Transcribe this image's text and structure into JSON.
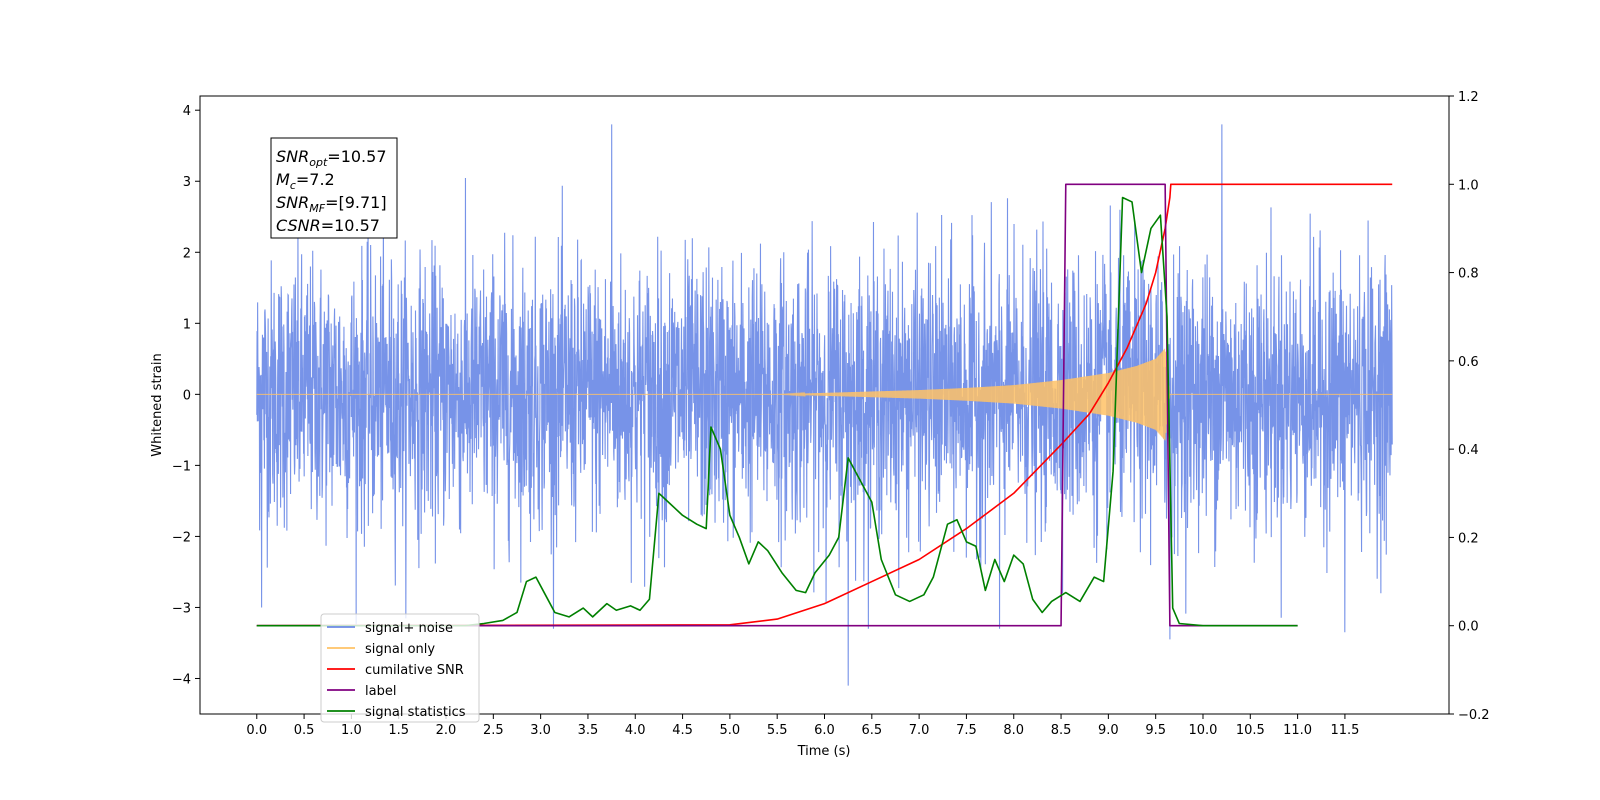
{
  "chart_data": {
    "type": "line",
    "xlabel": "Time (s)",
    "ylabel": "Whitened strain",
    "xlim": [
      -0.6,
      12.6
    ],
    "ylim_left": [
      -4.5,
      4.2
    ],
    "ylim_right": [
      -0.2,
      1.2
    ],
    "x_ticks": [
      "0.0",
      "0.5",
      "1.0",
      "1.5",
      "2.0",
      "2.5",
      "3.0",
      "3.5",
      "4.0",
      "4.5",
      "5.0",
      "5.5",
      "6.0",
      "6.5",
      "7.0",
      "7.5",
      "8.0",
      "8.5",
      "9.0",
      "9.5",
      "10.0",
      "10.5",
      "11.0",
      "11.5"
    ],
    "y_left_ticks": [
      "4",
      "3",
      "2",
      "1",
      "0",
      "−1",
      "−2",
      "−3",
      "−4"
    ],
    "y_right_ticks": [
      "1.2",
      "1.0",
      "0.8",
      "0.6",
      "0.4",
      "0.2",
      "0.0",
      "−0.2"
    ],
    "annotation": {
      "lines": [
        {
          "sym": "SNR",
          "sub": "opt",
          "value": "=10.57"
        },
        {
          "sym": "M",
          "sub": "c",
          "value": "=7.2"
        },
        {
          "sym": "SNR",
          "sub": "MF",
          "value": "=[9.71]"
        },
        {
          "sym": "CSNR",
          "sub": "",
          "value": "=10.57"
        }
      ]
    },
    "legend": {
      "placement": "lower-left",
      "entries": [
        {
          "label": "signal+ noise",
          "color": "#6b8ae6"
        },
        {
          "label": "signal only",
          "color": "#ffc266"
        },
        {
          "label": "cumilative SNR",
          "color": "#ff0000"
        },
        {
          "label": "label",
          "color": "#800080"
        },
        {
          "label": "signal statistics",
          "color": "#008000"
        }
      ]
    },
    "series": [
      {
        "name": "signal+ noise",
        "axis": "left",
        "color": "#6b8ae6",
        "x_range": [
          0.0,
          12.0
        ],
        "typical_amplitude": 1.5,
        "peak_excursions": [
          {
            "x": 3.75,
            "y": 3.8
          },
          {
            "x": 10.2,
            "y": 3.8
          },
          {
            "x": 6.25,
            "y": -4.1
          },
          {
            "x": 11.5,
            "y": -3.35
          },
          {
            "x": 9.65,
            "y": -3.45
          },
          {
            "x": 0.05,
            "y": -3.0
          },
          {
            "x": 7.85,
            "y": -3.3
          }
        ]
      },
      {
        "name": "signal only",
        "axis": "left",
        "color": "#ffc266",
        "x_range": [
          0.0,
          12.0
        ],
        "envelope": [
          [
            0.0,
            0.0
          ],
          [
            5.5,
            0.0
          ],
          [
            6.0,
            0.02
          ],
          [
            6.5,
            0.04
          ],
          [
            7.0,
            0.06
          ],
          [
            7.5,
            0.09
          ],
          [
            8.0,
            0.13
          ],
          [
            8.5,
            0.2
          ],
          [
            9.0,
            0.3
          ],
          [
            9.3,
            0.4
          ],
          [
            9.5,
            0.5
          ],
          [
            9.6,
            0.65
          ],
          [
            9.65,
            0.0
          ],
          [
            12.0,
            0.0
          ]
        ]
      },
      {
        "name": "cumilative SNR",
        "axis": "right",
        "color": "#ff0000",
        "points": [
          [
            0.0,
            0.0
          ],
          [
            5.0,
            0.002
          ],
          [
            5.5,
            0.015
          ],
          [
            6.0,
            0.05
          ],
          [
            6.5,
            0.1
          ],
          [
            7.0,
            0.15
          ],
          [
            7.5,
            0.22
          ],
          [
            8.0,
            0.3
          ],
          [
            8.5,
            0.41
          ],
          [
            8.8,
            0.48
          ],
          [
            9.0,
            0.55
          ],
          [
            9.2,
            0.63
          ],
          [
            9.4,
            0.73
          ],
          [
            9.5,
            0.8
          ],
          [
            9.6,
            0.9
          ],
          [
            9.65,
            0.97
          ],
          [
            9.66,
            1.0
          ],
          [
            12.0,
            1.0
          ]
        ]
      },
      {
        "name": "label",
        "axis": "right",
        "color": "#800080",
        "points": [
          [
            0.0,
            0.0
          ],
          [
            8.5,
            0.0
          ],
          [
            8.55,
            1.0
          ],
          [
            9.6,
            1.0
          ],
          [
            9.65,
            0.0
          ],
          [
            11.0,
            0.0
          ]
        ]
      },
      {
        "name": "signal statistics",
        "axis": "right",
        "color": "#008000",
        "points": [
          [
            0.0,
            0.0
          ],
          [
            2.2,
            0.0
          ],
          [
            2.4,
            0.005
          ],
          [
            2.6,
            0.012
          ],
          [
            2.75,
            0.03
          ],
          [
            2.85,
            0.1
          ],
          [
            2.95,
            0.11
          ],
          [
            3.05,
            0.07
          ],
          [
            3.15,
            0.03
          ],
          [
            3.3,
            0.02
          ],
          [
            3.45,
            0.04
          ],
          [
            3.55,
            0.02
          ],
          [
            3.7,
            0.05
          ],
          [
            3.8,
            0.035
          ],
          [
            3.95,
            0.045
          ],
          [
            4.05,
            0.035
          ],
          [
            4.15,
            0.06
          ],
          [
            4.25,
            0.3
          ],
          [
            4.35,
            0.28
          ],
          [
            4.5,
            0.25
          ],
          [
            4.65,
            0.23
          ],
          [
            4.75,
            0.22
          ],
          [
            4.8,
            0.45
          ],
          [
            4.9,
            0.4
          ],
          [
            5.0,
            0.25
          ],
          [
            5.1,
            0.2
          ],
          [
            5.2,
            0.14
          ],
          [
            5.3,
            0.19
          ],
          [
            5.4,
            0.17
          ],
          [
            5.55,
            0.12
          ],
          [
            5.7,
            0.08
          ],
          [
            5.8,
            0.075
          ],
          [
            5.9,
            0.12
          ],
          [
            6.05,
            0.16
          ],
          [
            6.15,
            0.2
          ],
          [
            6.25,
            0.38
          ],
          [
            6.35,
            0.34
          ],
          [
            6.5,
            0.28
          ],
          [
            6.6,
            0.15
          ],
          [
            6.75,
            0.07
          ],
          [
            6.9,
            0.055
          ],
          [
            7.05,
            0.07
          ],
          [
            7.15,
            0.11
          ],
          [
            7.3,
            0.23
          ],
          [
            7.4,
            0.24
          ],
          [
            7.5,
            0.19
          ],
          [
            7.6,
            0.18
          ],
          [
            7.7,
            0.08
          ],
          [
            7.8,
            0.15
          ],
          [
            7.9,
            0.1
          ],
          [
            8.0,
            0.16
          ],
          [
            8.1,
            0.14
          ],
          [
            8.2,
            0.06
          ],
          [
            8.3,
            0.03
          ],
          [
            8.4,
            0.055
          ],
          [
            8.55,
            0.075
          ],
          [
            8.7,
            0.055
          ],
          [
            8.85,
            0.11
          ],
          [
            8.95,
            0.1
          ],
          [
            9.05,
            0.35
          ],
          [
            9.15,
            0.97
          ],
          [
            9.25,
            0.96
          ],
          [
            9.35,
            0.8
          ],
          [
            9.45,
            0.9
          ],
          [
            9.55,
            0.93
          ],
          [
            9.62,
            0.7
          ],
          [
            9.68,
            0.04
          ],
          [
            9.75,
            0.005
          ],
          [
            10.0,
            0.0
          ],
          [
            11.0,
            0.0
          ]
        ]
      }
    ]
  }
}
